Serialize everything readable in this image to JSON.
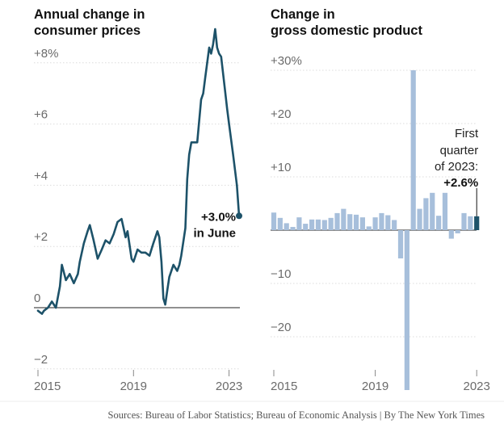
{
  "colors": {
    "cpi_line": "#1d5269",
    "gdp_bar": "#a7bfdb",
    "gdp_bar_highlight": "#1d5269",
    "text": "#121212",
    "tick": "#6b6b6b",
    "grid": "#dcdcdc"
  },
  "source": "Sources: Bureau of Labor Statistics; Bureau of Economic Analysis | By The New York Times",
  "chart_data": [
    {
      "type": "line",
      "title_lines": [
        "Annual change in",
        "consumer prices"
      ],
      "ylim": [
        -2.2,
        9.2
      ],
      "yticks": [
        {
          "value": 8,
          "label": "+8%"
        },
        {
          "value": 6,
          "label": "+6"
        },
        {
          "value": 4,
          "label": "+4"
        },
        {
          "value": 2,
          "label": "+2"
        },
        {
          "value": 0,
          "label": "0"
        },
        {
          "value": -2,
          "label": "−2"
        }
      ],
      "xlim": [
        2015.0,
        2023.42
      ],
      "xticks": [
        {
          "value": 2015,
          "label": "2015"
        },
        {
          "value": 2019,
          "label": "2019"
        },
        {
          "value": 2023,
          "label": "2023"
        }
      ],
      "series": [
        {
          "x": [
            2015.0,
            2015.17,
            2015.25,
            2015.42,
            2015.58,
            2015.75,
            2015.92,
            2016.0,
            2016.17,
            2016.33,
            2016.5,
            2016.67,
            2016.75,
            2016.92,
            2017.08,
            2017.17,
            2017.33,
            2017.5,
            2017.67,
            2017.83,
            2018.0,
            2018.17,
            2018.33,
            2018.5,
            2018.67,
            2018.75,
            2018.92,
            2019.0,
            2019.17,
            2019.33,
            2019.5,
            2019.67,
            2019.83,
            2020.0,
            2020.08,
            2020.17,
            2020.25,
            2020.33,
            2020.42,
            2020.5,
            2020.67,
            2020.83,
            2020.92,
            2021.0,
            2021.17,
            2021.25,
            2021.33,
            2021.42,
            2021.5,
            2021.67,
            2021.83,
            2021.92,
            2022.0,
            2022.17,
            2022.25,
            2022.33,
            2022.42,
            2022.5,
            2022.58,
            2022.67,
            2022.83,
            2022.92,
            2023.0,
            2023.17,
            2023.33,
            2023.42
          ],
          "values": [
            -0.1,
            -0.2,
            -0.1,
            0.0,
            0.2,
            0.0,
            0.7,
            1.4,
            0.9,
            1.1,
            0.8,
            1.1,
            1.5,
            2.1,
            2.5,
            2.7,
            2.2,
            1.6,
            1.9,
            2.2,
            2.1,
            2.4,
            2.8,
            2.9,
            2.3,
            2.5,
            1.6,
            1.5,
            1.9,
            1.8,
            1.8,
            1.7,
            2.1,
            2.5,
            2.3,
            1.5,
            0.3,
            0.1,
            0.6,
            1.0,
            1.4,
            1.2,
            1.4,
            1.7,
            2.6,
            4.2,
            5.0,
            5.4,
            5.4,
            5.4,
            6.8,
            7.0,
            7.5,
            8.5,
            8.3,
            8.6,
            9.1,
            8.5,
            8.3,
            8.2,
            7.1,
            6.5,
            6.0,
            5.0,
            4.0,
            3.0
          ],
          "end_label_lines": [
            "+3.0%",
            "in June"
          ]
        }
      ]
    },
    {
      "type": "bar",
      "title_lines": [
        "Change in",
        "gross domestic product"
      ],
      "ylim": [
        -26,
        32
      ],
      "yticks": [
        {
          "value": 30,
          "label": "+30%"
        },
        {
          "value": 20,
          "label": "+20"
        },
        {
          "value": 10,
          "label": "+10"
        },
        {
          "value": 0,
          "label": ""
        },
        {
          "value": -10,
          "label": "−10"
        },
        {
          "value": -20,
          "label": "−20"
        }
      ],
      "xticks": [
        {
          "value": 2015,
          "label": "2015"
        },
        {
          "value": 2019,
          "label": "2019"
        },
        {
          "value": 2023,
          "label": "2023"
        }
      ],
      "quarters_x": [
        2015.0,
        2015.25,
        2015.5,
        2015.75,
        2016.0,
        2016.25,
        2016.5,
        2016.75,
        2017.0,
        2017.25,
        2017.5,
        2017.75,
        2018.0,
        2018.25,
        2018.5,
        2018.75,
        2019.0,
        2019.25,
        2019.5,
        2019.75,
        2020.0,
        2020.25,
        2020.5,
        2020.75,
        2021.0,
        2021.25,
        2021.5,
        2021.75,
        2022.0,
        2022.25,
        2022.5,
        2022.75,
        2023.0
      ],
      "values": [
        3.3,
        2.3,
        1.3,
        0.6,
        2.4,
        1.2,
        2.0,
        2.0,
        1.9,
        2.3,
        3.2,
        4.0,
        3.0,
        2.9,
        2.4,
        0.7,
        2.4,
        3.2,
        2.8,
        1.9,
        -5.3,
        -30.0,
        30.0,
        4.0,
        6.0,
        7.0,
        2.7,
        7.0,
        -1.6,
        -0.6,
        3.2,
        2.6,
        2.6
      ],
      "highlight_index": 32,
      "annotation_lines": [
        "First",
        "quarter",
        "of 2023:"
      ],
      "annotation_value": "+2.6%"
    }
  ]
}
